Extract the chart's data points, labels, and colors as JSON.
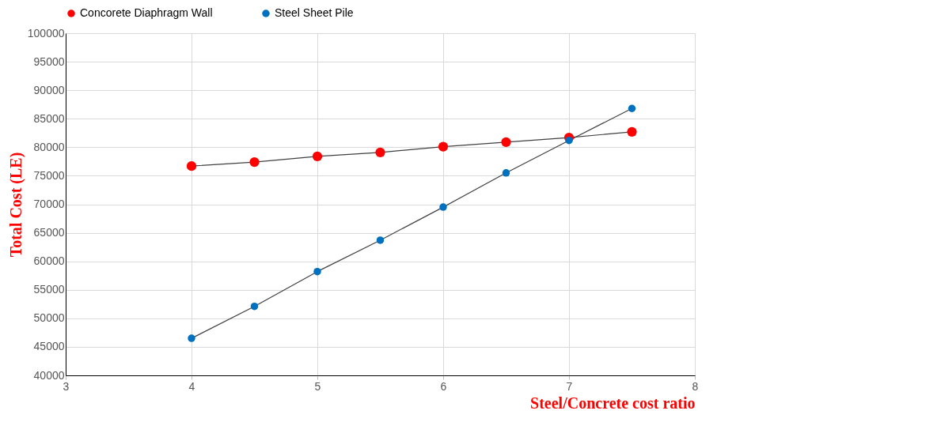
{
  "chart_data": {
    "type": "line",
    "xlabel": "Steel/Concrete cost ratio",
    "ylabel": "Total Cost (LE)",
    "x": [
      4,
      4.5,
      5,
      5.5,
      6,
      6.5,
      7,
      7.5
    ],
    "series": [
      {
        "name": "Concorete Diaphragm Wall",
        "color": "#ff0000",
        "values": [
          76700,
          77400,
          78400,
          79100,
          80100,
          80900,
          81700,
          82700
        ]
      },
      {
        "name": "Steel Sheet Pile",
        "color": "#0070c0",
        "values": [
          46500,
          52100,
          58200,
          63700,
          69500,
          75500,
          81200,
          86800
        ]
      }
    ],
    "xlim": [
      3,
      8
    ],
    "xticks": [
      3,
      4,
      5,
      6,
      7,
      8
    ],
    "ylim": [
      40000,
      100000
    ],
    "yticks": [
      40000,
      45000,
      50000,
      55000,
      60000,
      65000,
      70000,
      75000,
      80000,
      85000,
      90000,
      95000,
      100000
    ],
    "grid": true,
    "legend": "top",
    "marker": "circle",
    "line_style": "solid"
  }
}
